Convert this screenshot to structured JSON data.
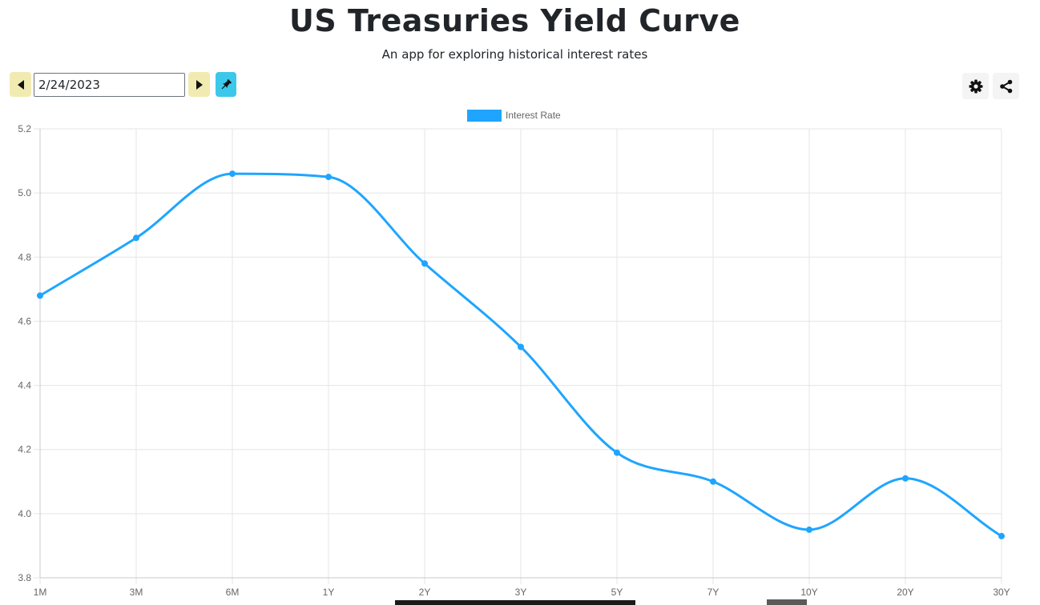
{
  "header": {
    "title": "US Treasuries Yield Curve",
    "subtitle": "An app for exploring historical interest rates"
  },
  "controls": {
    "date_value": "2/24/2023",
    "prev_icon": "caret-left-icon",
    "next_icon": "caret-right-icon",
    "pin_icon": "pin-icon",
    "settings_icon": "gear-icon",
    "share_icon": "share-icon"
  },
  "colors": {
    "series": "#1fa5ff",
    "nav_button": "#f1ebb1",
    "pin_button": "#3cc8ea"
  },
  "chart_data": {
    "type": "line",
    "categories": [
      "1M",
      "3M",
      "6M",
      "1Y",
      "2Y",
      "3Y",
      "5Y",
      "7Y",
      "10Y",
      "20Y",
      "30Y"
    ],
    "series": [
      {
        "name": "Interest Rate",
        "values": [
          4.68,
          4.86,
          5.06,
          5.05,
          4.78,
          4.52,
          4.19,
          4.1,
          3.95,
          4.11,
          3.93
        ]
      }
    ],
    "ylim": [
      3.8,
      5.2
    ],
    "yticks": [
      "3.8",
      "4.0",
      "4.2",
      "4.4",
      "4.6",
      "4.8",
      "5.0",
      "5.2"
    ],
    "legend": "top-center",
    "grid": true,
    "smooth": true
  }
}
